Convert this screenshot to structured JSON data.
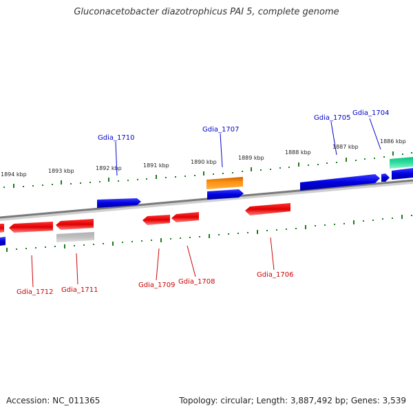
{
  "title": "Gluconacetobacter diazotrophicus PAI 5, complete genome",
  "footer": {
    "accession": "Accession: NC_011365",
    "topology": "Topology: circular; Length: 3,887,492 bp; Genes: 3,539"
  },
  "colors": {
    "forward_label": "#0000cc",
    "reverse_label": "#cc0000",
    "tick": "#1a7a1a",
    "backbone": "#7a7a7a"
  },
  "tick_labels": [
    "1894 kbp",
    "1893 kbp",
    "1892 kbp",
    "1891 kbp",
    "1890 kbp",
    "1889 kbp",
    "1888 kbp",
    "1887 kbp",
    "1886 kbp"
  ],
  "genes": [
    {
      "id": "Gdia_1704",
      "strand": "+"
    },
    {
      "id": "Gdia_1705",
      "strand": "+"
    },
    {
      "id": "Gdia_1707",
      "strand": "+"
    },
    {
      "id": "Gdia_1710",
      "strand": "+"
    },
    {
      "id": "Gdia_1706",
      "strand": "-"
    },
    {
      "id": "Gdia_1708",
      "strand": "-"
    },
    {
      "id": "Gdia_1709",
      "strand": "-"
    },
    {
      "id": "Gdia_1711",
      "strand": "-"
    },
    {
      "id": "Gdia_1712",
      "strand": "-"
    }
  ]
}
